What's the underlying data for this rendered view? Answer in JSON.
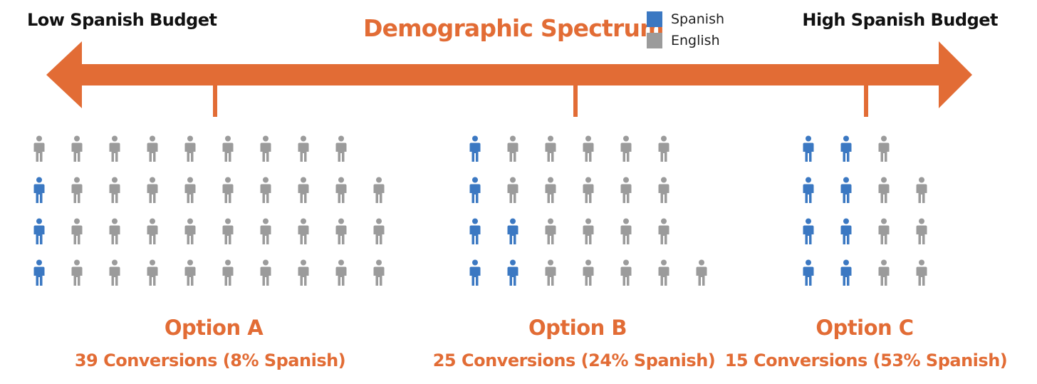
{
  "header": {
    "left_label": "Low Spanish Budget",
    "title": "Demographic Spectrum",
    "right_label": "High Spanish Budget"
  },
  "legend": [
    {
      "label": "Spanish",
      "color": "#3b78c2"
    },
    {
      "label": "English",
      "color": "#9b9b9b"
    }
  ],
  "colors": {
    "accent": "#e26c35",
    "spanish": "#3b78c2",
    "english": "#9b9b9b"
  },
  "icon": "person-icon",
  "options": [
    {
      "title": "Option A",
      "subtitle": "39 Conversions (8% Spanish)",
      "rows": [
        [
          "E",
          "E",
          "E",
          "E",
          "E",
          "E",
          "E",
          "E",
          "E"
        ],
        [
          "S",
          "E",
          "E",
          "E",
          "E",
          "E",
          "E",
          "E",
          "E",
          "E"
        ],
        [
          "S",
          "E",
          "E",
          "E",
          "E",
          "E",
          "E",
          "E",
          "E",
          "E"
        ],
        [
          "S",
          "E",
          "E",
          "E",
          "E",
          "E",
          "E",
          "E",
          "E",
          "E"
        ]
      ]
    },
    {
      "title": "Option B",
      "subtitle": "25 Conversions (24% Spanish)",
      "rows": [
        [
          "S",
          "E",
          "E",
          "E",
          "E",
          "E"
        ],
        [
          "S",
          "E",
          "E",
          "E",
          "E",
          "E"
        ],
        [
          "S",
          "S",
          "E",
          "E",
          "E",
          "E"
        ],
        [
          "S",
          "S",
          "E",
          "E",
          "E",
          "E",
          "E"
        ]
      ]
    },
    {
      "title": "Option C",
      "subtitle": "15 Conversions (53% Spanish)",
      "rows": [
        [
          "S",
          "S",
          "E"
        ],
        [
          "S",
          "S",
          "E",
          "E"
        ],
        [
          "S",
          "S",
          "E",
          "E"
        ],
        [
          "S",
          "S",
          "E",
          "E"
        ]
      ]
    }
  ]
}
